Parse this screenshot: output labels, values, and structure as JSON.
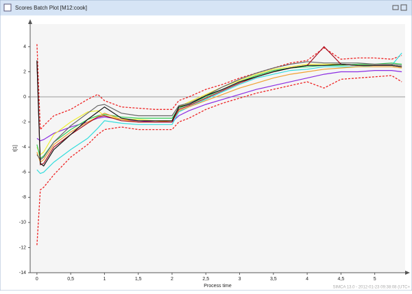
{
  "window": {
    "title": "Scores Batch Plot [M12:cook]",
    "footer": "SIMCA 13.0 - 2012-01-23 09:38:08 (UTC+"
  },
  "chart_data": {
    "type": "line",
    "xlabel": "Process time",
    "ylabel": "t[1]",
    "x": [
      0,
      0.05,
      0.1,
      0.25,
      0.5,
      0.75,
      0.9,
      1.0,
      1.25,
      1.5,
      1.75,
      2.0,
      2.1,
      2.25,
      2.5,
      2.75,
      3.0,
      3.25,
      3.5,
      3.75,
      4.0,
      4.25,
      4.5,
      4.75,
      5.0,
      5.25,
      5.4
    ],
    "xlim": [
      -0.1,
      5.45
    ],
    "ylim": [
      -14,
      5.8
    ],
    "xticks": [
      0,
      {
        "value": 0.5,
        "label": "0,5"
      },
      1,
      {
        "value": 1.5,
        "label": "1,5"
      },
      2,
      {
        "value": 2.5,
        "label": "2,5"
      },
      3,
      {
        "value": 3.5,
        "label": "3,5"
      },
      4,
      {
        "value": 4.5,
        "label": "4,5"
      },
      5
    ],
    "yticks": [
      -14,
      -12,
      -10,
      -8,
      -6,
      -4,
      -2,
      0,
      2,
      4
    ],
    "zero_line": true,
    "series": [
      {
        "color": "#ee2222",
        "style": "dashed",
        "values": [
          4.2,
          -2.6,
          -2.3,
          -1.5,
          -1.0,
          -0.2,
          0.2,
          -0.3,
          -0.8,
          -0.9,
          -1.0,
          -1.0,
          -0.3,
          0.0,
          0.6,
          1.0,
          1.5,
          1.9,
          2.3,
          2.7,
          2.9,
          3.9,
          3.0,
          3.1,
          3.1,
          3.0,
          3.3
        ]
      },
      {
        "color": "#ee2222",
        "style": "dashed",
        "values": [
          -11.8,
          -7.4,
          -7.2,
          -6.2,
          -4.8,
          -3.8,
          -3.0,
          -2.6,
          -2.4,
          -2.6,
          -2.6,
          -2.6,
          -2.0,
          -1.7,
          -1.0,
          -0.5,
          -0.1,
          0.3,
          0.6,
          0.9,
          1.2,
          0.7,
          1.4,
          1.5,
          1.6,
          1.7,
          1.2
        ]
      },
      {
        "color": "#8a2be2",
        "style": "solid",
        "values": [
          -3.3,
          -3.5,
          -3.4,
          -2.9,
          -2.4,
          -2.0,
          -1.7,
          -1.6,
          -1.8,
          -1.9,
          -2.0,
          -2.0,
          -1.5,
          -1.1,
          -0.6,
          -0.2,
          0.2,
          0.6,
          0.9,
          1.2,
          1.5,
          1.8,
          2.0,
          2.0,
          2.1,
          2.1,
          2.0
        ]
      },
      {
        "color": "#33dddd",
        "style": "solid",
        "values": [
          -5.8,
          -6.1,
          -6.0,
          -5.2,
          -4.2,
          -3.3,
          -2.5,
          -1.9,
          -2.1,
          -2.2,
          -2.2,
          -2.2,
          -1.2,
          -0.8,
          -0.2,
          0.4,
          1.0,
          1.5,
          1.8,
          2.1,
          2.2,
          2.4,
          2.4,
          2.4,
          2.5,
          2.5,
          3.5
        ]
      },
      {
        "color": "#eeee33",
        "style": "solid",
        "values": [
          -4.0,
          -4.6,
          -4.4,
          -3.0,
          -2.0,
          -1.2,
          -1.1,
          -1.5,
          -1.8,
          -1.8,
          -1.9,
          -1.9,
          -0.8,
          -0.4,
          0.2,
          0.8,
          1.3,
          1.8,
          2.2,
          2.4,
          2.6,
          2.6,
          2.6,
          2.5,
          2.5,
          2.5,
          2.4
        ]
      },
      {
        "color": "#33cc55",
        "style": "solid",
        "values": [
          -3.8,
          -4.9,
          -4.7,
          -3.6,
          -2.6,
          -1.8,
          -1.5,
          -1.4,
          -1.6,
          -1.7,
          -1.7,
          -1.7,
          -0.9,
          -0.6,
          0.0,
          0.6,
          1.2,
          1.7,
          2.1,
          2.3,
          2.4,
          2.5,
          2.5,
          2.6,
          2.6,
          2.7,
          2.6
        ]
      },
      {
        "color": "#f0a030",
        "style": "solid",
        "values": [
          -4.4,
          -5.2,
          -5.0,
          -3.8,
          -2.8,
          -2.0,
          -1.6,
          -1.3,
          -1.8,
          -2.0,
          -2.0,
          -1.9,
          -1.1,
          -0.8,
          -0.3,
          0.2,
          0.7,
          1.1,
          1.5,
          1.8,
          2.0,
          2.2,
          2.3,
          2.4,
          2.4,
          2.4,
          2.3
        ]
      },
      {
        "color": "#666666",
        "style": "solid",
        "values": [
          -4.6,
          -5.0,
          -4.8,
          -3.6,
          -2.3,
          -1.3,
          -0.7,
          -0.6,
          -1.3,
          -1.5,
          -1.5,
          -1.5,
          -0.7,
          -0.5,
          0.1,
          0.8,
          1.4,
          1.9,
          2.3,
          2.6,
          2.8,
          2.7,
          2.7,
          2.7,
          2.6,
          2.6,
          2.5
        ]
      },
      {
        "color": "#aa1122",
        "style": "solid",
        "values": [
          2.8,
          -5.4,
          -5.3,
          -4.0,
          -3.0,
          -2.1,
          -1.6,
          -1.5,
          -1.9,
          -2.0,
          -2.0,
          -2.0,
          -1.0,
          -0.7,
          -0.1,
          0.5,
          1.1,
          1.6,
          2.0,
          2.3,
          2.5,
          4.0,
          2.6,
          2.5,
          2.5,
          2.5,
          2.4
        ]
      },
      {
        "color": "#111111",
        "style": "solid",
        "values": [
          2.9,
          -5.3,
          -5.5,
          -4.2,
          -3.0,
          -1.8,
          -1.2,
          -0.8,
          -1.7,
          -1.9,
          -1.9,
          -1.9,
          -0.8,
          -0.6,
          0.1,
          0.6,
          1.2,
          1.6,
          2.0,
          2.3,
          2.5,
          2.5,
          2.6,
          2.5,
          2.5,
          2.5,
          2.4
        ]
      }
    ]
  }
}
